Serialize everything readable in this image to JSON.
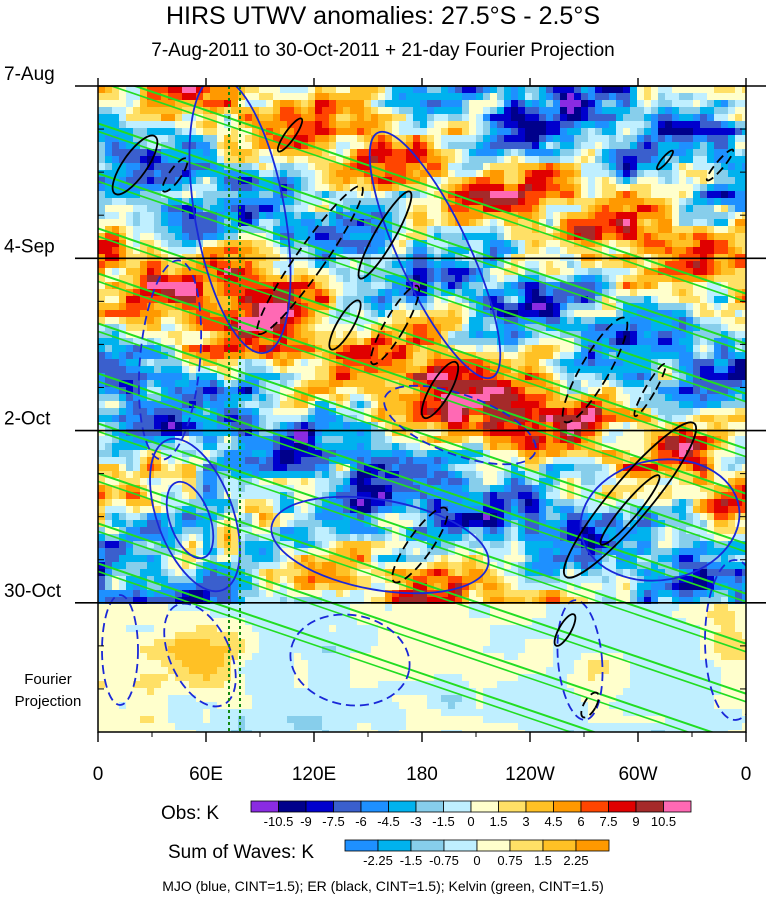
{
  "chart_data": {
    "type": "heatmap",
    "title": "HIRS UTWV anomalies: 27.5°S - 2.5°S",
    "subtitle": "7-Aug-2011 to 30-Oct-2011 + 21-day Fourier Projection",
    "x_tick_labels": [
      "0",
      "60E",
      "120E",
      "180",
      "120W",
      "60W",
      "0"
    ],
    "x_tick_values_deg": [
      0,
      60,
      120,
      180,
      240,
      300,
      360
    ],
    "y_tick_labels": [
      "7-Aug",
      "4-Sep",
      "2-Oct",
      "30-Oct"
    ],
    "y_tick_days": [
      0,
      28,
      56,
      84
    ],
    "y_extra_label_lines": [
      "Fourier",
      "Projection"
    ],
    "time_range_days": [
      0,
      105
    ],
    "longitude_range_deg": [
      0,
      360
    ],
    "obs_colorbar": {
      "label": "Obs: K",
      "levels": [
        "-10.5",
        "-9",
        "-7.5",
        "-6",
        "-4.5",
        "-3",
        "-1.5",
        "0",
        "1.5",
        "3",
        "4.5",
        "6",
        "7.5",
        "9",
        "10.5"
      ],
      "colors": [
        "#8a2be2",
        "#00008b",
        "#0000cd",
        "#3a5fcd",
        "#1e90ff",
        "#00b2ee",
        "#87ceeb",
        "#bfefff",
        "#ffffcc",
        "#ffe066",
        "#ffc125",
        "#ff9900",
        "#ff4500",
        "#e00000",
        "#a52a2a",
        "#ff69b4"
      ]
    },
    "waves_colorbar": {
      "label": "Sum of Waves: K",
      "levels": [
        "-2.25",
        "-1.5",
        "-0.75",
        "0",
        "0.75",
        "1.5",
        "2.25"
      ],
      "colors": [
        "#1e90ff",
        "#00b2ee",
        "#87ceeb",
        "#bfefff",
        "#ffffcc",
        "#ffe066",
        "#ffc125",
        "#ff9900"
      ]
    },
    "contours": [
      {
        "name": "MJO",
        "color": "blue",
        "cint": 1.5
      },
      {
        "name": "ER",
        "color": "black",
        "cint": 1.5
      },
      {
        "name": "Kelvin",
        "color": "green",
        "cint": 1.5
      }
    ],
    "footer": "MJO (blue, CINT=1.5); ER (black, CINT=1.5); Kelvin (green, CINT=1.5)"
  }
}
